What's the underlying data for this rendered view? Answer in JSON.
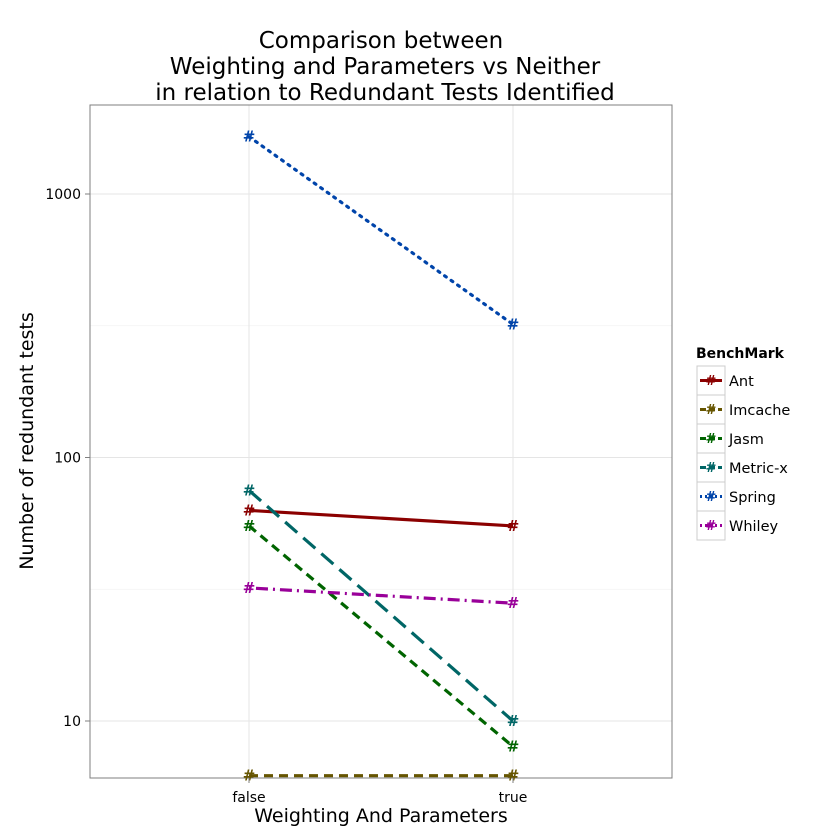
{
  "chart_data": {
    "type": "line",
    "title_lines": [
      "Comparison between",
      "Weighting and Parameters vs Neither",
      "in relation to Redundant Tests Identified"
    ],
    "xlabel": "Weighting And Parameters",
    "ylabel": "Number of redundant tests",
    "categories": [
      "false",
      "true"
    ],
    "y_scale": "log",
    "ylim": [
      6.2,
      2000
    ],
    "y_ticks": [
      10,
      100,
      1000
    ],
    "y_tick_labels": [
      "10",
      "100",
      "1000"
    ],
    "grid": true,
    "point_marker": "#",
    "legend": {
      "title": "BenchMark",
      "position": "right"
    },
    "series": [
      {
        "name": "Ant",
        "values": [
          63,
          55
        ],
        "color": "#8b0000",
        "dash": "solid"
      },
      {
        "name": "Imcache",
        "values": [
          6.2,
          6.2
        ],
        "color": "#665500",
        "dash": "dashed"
      },
      {
        "name": "Jasm",
        "values": [
          55,
          8
        ],
        "color": "#006400",
        "dash": "dashed"
      },
      {
        "name": "Metric-x",
        "values": [
          75,
          10
        ],
        "color": "#006666",
        "dash": "longdash"
      },
      {
        "name": "Spring",
        "values": [
          1650,
          320
        ],
        "color": "#0044aa",
        "dash": "dotted"
      },
      {
        "name": "Whiley",
        "values": [
          32,
          28
        ],
        "color": "#990099",
        "dash": "dotdash"
      }
    ]
  }
}
